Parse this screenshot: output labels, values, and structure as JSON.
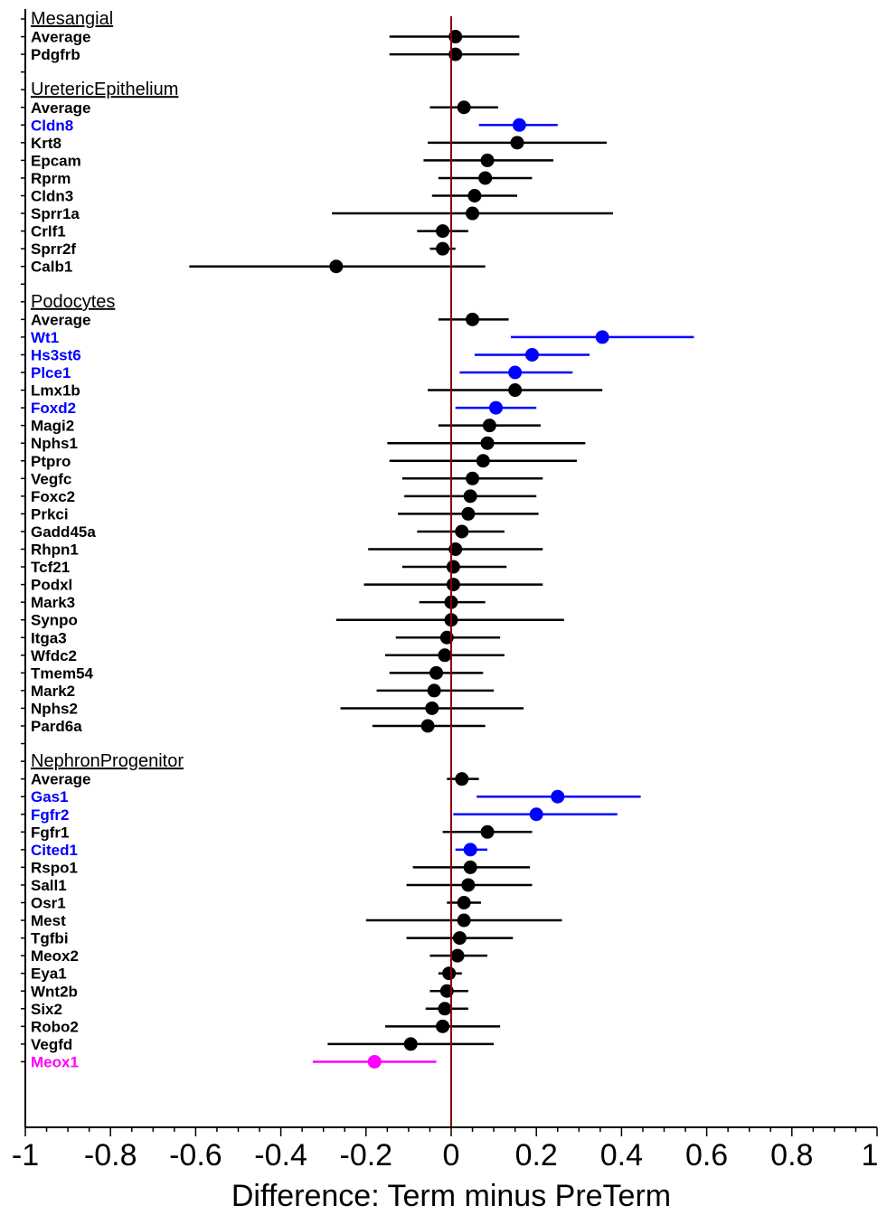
{
  "chart_data": {
    "type": "forest",
    "xlabel": "Difference: Term minus PreTerm",
    "xlim": [
      -1,
      1
    ],
    "x_ticks": [
      -1,
      -0.8,
      -0.6,
      -0.4,
      -0.2,
      0,
      0.2,
      0.4,
      0.6,
      0.8,
      1
    ],
    "x_tick_labels": [
      "-1",
      "-0.8",
      "-0.6",
      "-0.4",
      "-0.2",
      "0",
      "0.2",
      "0.4",
      "0.6",
      "0.8",
      "1"
    ],
    "reference_line": {
      "x": 0,
      "color": "#8b0000"
    },
    "colors": {
      "default": "#000000",
      "significant": "#0000ff",
      "highlight": "#ff00ff"
    },
    "groups": [
      {
        "name": "Mesangial",
        "rows": [
          {
            "label": "Average",
            "est": 0.01,
            "lo": -0.145,
            "hi": 0.16,
            "color": "default"
          },
          {
            "label": "Pdgfrb",
            "est": 0.01,
            "lo": -0.145,
            "hi": 0.16,
            "color": "default"
          }
        ]
      },
      {
        "name": "UretericEpithelium",
        "rows": [
          {
            "label": "Average",
            "est": 0.03,
            "lo": -0.05,
            "hi": 0.11,
            "color": "default"
          },
          {
            "label": "Cldn8",
            "est": 0.16,
            "lo": 0.065,
            "hi": 0.25,
            "color": "significant"
          },
          {
            "label": "Krt8",
            "est": 0.155,
            "lo": -0.055,
            "hi": 0.365,
            "color": "default"
          },
          {
            "label": "Epcam",
            "est": 0.085,
            "lo": -0.065,
            "hi": 0.24,
            "color": "default"
          },
          {
            "label": "Rprm",
            "est": 0.08,
            "lo": -0.03,
            "hi": 0.19,
            "color": "default"
          },
          {
            "label": "Cldn3",
            "est": 0.055,
            "lo": -0.045,
            "hi": 0.155,
            "color": "default"
          },
          {
            "label": "Sprr1a",
            "est": 0.05,
            "lo": -0.28,
            "hi": 0.38,
            "color": "default"
          },
          {
            "label": "Crlf1",
            "est": -0.02,
            "lo": -0.08,
            "hi": 0.04,
            "color": "default"
          },
          {
            "label": "Sprr2f",
            "est": -0.02,
            "lo": -0.05,
            "hi": 0.01,
            "color": "default"
          },
          {
            "label": "Calb1",
            "est": -0.27,
            "lo": -0.615,
            "hi": 0.08,
            "color": "default"
          }
        ]
      },
      {
        "name": "Podocytes",
        "rows": [
          {
            "label": "Average",
            "est": 0.05,
            "lo": -0.03,
            "hi": 0.135,
            "color": "default"
          },
          {
            "label": "Wt1",
            "est": 0.355,
            "lo": 0.14,
            "hi": 0.57,
            "color": "significant"
          },
          {
            "label": "Hs3st6",
            "est": 0.19,
            "lo": 0.055,
            "hi": 0.325,
            "color": "significant"
          },
          {
            "label": "Plce1",
            "est": 0.15,
            "lo": 0.02,
            "hi": 0.285,
            "color": "significant"
          },
          {
            "label": "Lmx1b",
            "est": 0.15,
            "lo": -0.055,
            "hi": 0.355,
            "color": "default"
          },
          {
            "label": "Foxd2",
            "est": 0.105,
            "lo": 0.01,
            "hi": 0.2,
            "color": "significant"
          },
          {
            "label": "Magi2",
            "est": 0.09,
            "lo": -0.03,
            "hi": 0.21,
            "color": "default"
          },
          {
            "label": "Nphs1",
            "est": 0.085,
            "lo": -0.15,
            "hi": 0.315,
            "color": "default"
          },
          {
            "label": "Ptpro",
            "est": 0.075,
            "lo": -0.145,
            "hi": 0.295,
            "color": "default"
          },
          {
            "label": "Vegfc",
            "est": 0.05,
            "lo": -0.115,
            "hi": 0.215,
            "color": "default"
          },
          {
            "label": "Foxc2",
            "est": 0.045,
            "lo": -0.11,
            "hi": 0.2,
            "color": "default"
          },
          {
            "label": "Prkci",
            "est": 0.04,
            "lo": -0.125,
            "hi": 0.205,
            "color": "default"
          },
          {
            "label": "Gadd45a",
            "est": 0.025,
            "lo": -0.08,
            "hi": 0.125,
            "color": "default"
          },
          {
            "label": "Rhpn1",
            "est": 0.01,
            "lo": -0.195,
            "hi": 0.215,
            "color": "default"
          },
          {
            "label": "Tcf21",
            "est": 0.005,
            "lo": -0.115,
            "hi": 0.13,
            "color": "default"
          },
          {
            "label": "Podxl",
            "est": 0.005,
            "lo": -0.205,
            "hi": 0.215,
            "color": "default"
          },
          {
            "label": "Mark3",
            "est": 0.0,
            "lo": -0.075,
            "hi": 0.08,
            "color": "default"
          },
          {
            "label": "Synpo",
            "est": 0.0,
            "lo": -0.27,
            "hi": 0.265,
            "color": "default"
          },
          {
            "label": "Itga3",
            "est": -0.01,
            "lo": -0.13,
            "hi": 0.115,
            "color": "default"
          },
          {
            "label": "Wfdc2",
            "est": -0.015,
            "lo": -0.155,
            "hi": 0.125,
            "color": "default"
          },
          {
            "label": "Tmem54",
            "est": -0.035,
            "lo": -0.145,
            "hi": 0.075,
            "color": "default"
          },
          {
            "label": "Mark2",
            "est": -0.04,
            "lo": -0.175,
            "hi": 0.1,
            "color": "default"
          },
          {
            "label": "Nphs2",
            "est": -0.045,
            "lo": -0.26,
            "hi": 0.17,
            "color": "default"
          },
          {
            "label": "Pard6a",
            "est": -0.055,
            "lo": -0.185,
            "hi": 0.08,
            "color": "default"
          }
        ]
      },
      {
        "name": "NephronProgenitor",
        "rows": [
          {
            "label": "Average",
            "est": 0.025,
            "lo": -0.01,
            "hi": 0.065,
            "color": "default"
          },
          {
            "label": "Gas1",
            "est": 0.25,
            "lo": 0.06,
            "hi": 0.445,
            "color": "significant"
          },
          {
            "label": "Fgfr2",
            "est": 0.2,
            "lo": 0.005,
            "hi": 0.39,
            "color": "significant"
          },
          {
            "label": "Fgfr1",
            "est": 0.085,
            "lo": -0.02,
            "hi": 0.19,
            "color": "default"
          },
          {
            "label": "Cited1",
            "est": 0.045,
            "lo": 0.01,
            "hi": 0.085,
            "color": "significant"
          },
          {
            "label": "Rspo1",
            "est": 0.045,
            "lo": -0.09,
            "hi": 0.185,
            "color": "default"
          },
          {
            "label": "Sall1",
            "est": 0.04,
            "lo": -0.105,
            "hi": 0.19,
            "color": "default"
          },
          {
            "label": "Osr1",
            "est": 0.03,
            "lo": -0.01,
            "hi": 0.07,
            "color": "default"
          },
          {
            "label": "Mest",
            "est": 0.03,
            "lo": -0.2,
            "hi": 0.26,
            "color": "default"
          },
          {
            "label": "Tgfbi",
            "est": 0.02,
            "lo": -0.105,
            "hi": 0.145,
            "color": "default"
          },
          {
            "label": "Meox2",
            "est": 0.015,
            "lo": -0.05,
            "hi": 0.085,
            "color": "default"
          },
          {
            "label": "Eya1",
            "est": -0.005,
            "lo": -0.03,
            "hi": 0.025,
            "color": "default"
          },
          {
            "label": "Wnt2b",
            "est": -0.01,
            "lo": -0.05,
            "hi": 0.04,
            "color": "default"
          },
          {
            "label": "Six2",
            "est": -0.015,
            "lo": -0.06,
            "hi": 0.04,
            "color": "default"
          },
          {
            "label": "Robo2",
            "est": -0.02,
            "lo": -0.155,
            "hi": 0.115,
            "color": "default"
          },
          {
            "label": "Vegfd",
            "est": -0.095,
            "lo": -0.29,
            "hi": 0.1,
            "color": "default"
          },
          {
            "label": "Meox1",
            "est": -0.18,
            "lo": -0.325,
            "hi": -0.035,
            "color": "highlight"
          }
        ]
      }
    ]
  }
}
